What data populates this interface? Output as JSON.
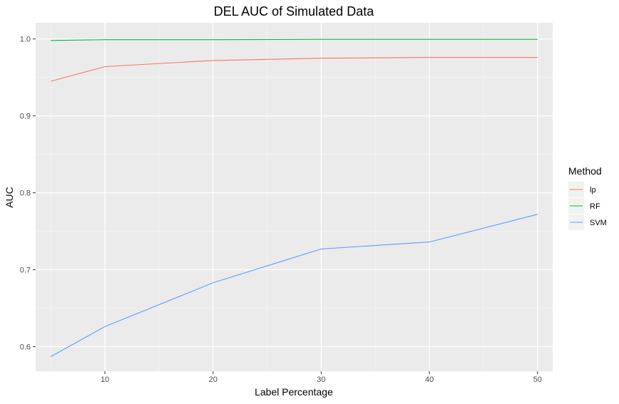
{
  "chart_data": {
    "type": "line",
    "title": "DEL AUC of Simulated Data",
    "xlabel": "Label Percentage",
    "ylabel": "AUC",
    "xlim": [
      3.6,
      51.4
    ],
    "ylim": [
      0.568,
      1.021
    ],
    "x_ticks": [
      10,
      20,
      30,
      40,
      50
    ],
    "y_ticks": [
      0.6,
      0.7,
      0.8,
      0.9,
      1.0
    ],
    "x_tick_labels": [
      "10",
      "20",
      "30",
      "40",
      "50"
    ],
    "y_tick_labels": [
      "0.6",
      "0.7",
      "0.8",
      "0.9",
      "1.0"
    ],
    "x": [
      5,
      10,
      20,
      30,
      40,
      50
    ],
    "grid": true,
    "legend": {
      "title": "Method",
      "placement": "right"
    },
    "series": [
      {
        "name": "lp",
        "color": "#F8766D",
        "values": [
          0.945,
          0.964,
          0.972,
          0.975,
          0.976,
          0.976
        ]
      },
      {
        "name": "RF",
        "color": "#00BA38",
        "values": [
          0.998,
          0.999,
          0.999,
          0.9995,
          0.9995,
          0.9995
        ]
      },
      {
        "name": "SVM",
        "color": "#619CFF",
        "values": [
          0.587,
          0.626,
          0.683,
          0.727,
          0.736,
          0.772
        ]
      }
    ]
  }
}
